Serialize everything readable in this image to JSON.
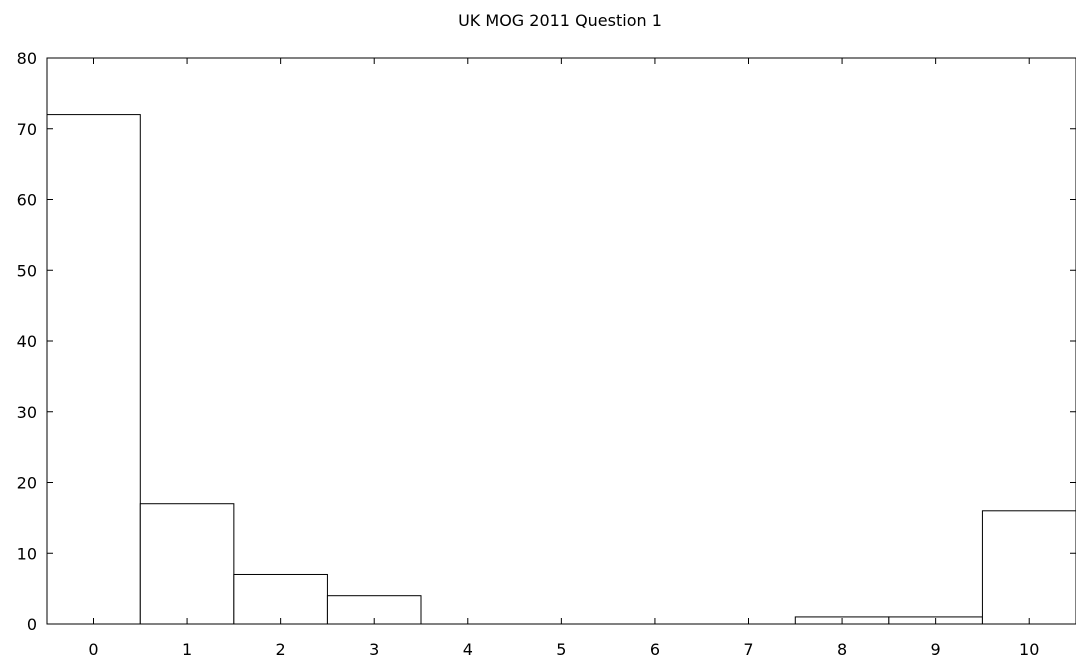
{
  "chart_data": {
    "type": "bar",
    "title": "UK MOG 2011 Question 1",
    "xlabel": "",
    "ylabel": "",
    "categories": [
      "0",
      "1",
      "2",
      "3",
      "4",
      "5",
      "6",
      "7",
      "8",
      "9",
      "10"
    ],
    "values": [
      72,
      17,
      7,
      4,
      0,
      0,
      0,
      0,
      1,
      1,
      16
    ],
    "ylim": [
      0,
      80
    ],
    "yticks": [
      0,
      10,
      20,
      30,
      40,
      50,
      60,
      70,
      80
    ],
    "grid": false,
    "legend": "none",
    "bar_fill": "#ffffff",
    "bar_stroke": "#000000"
  }
}
